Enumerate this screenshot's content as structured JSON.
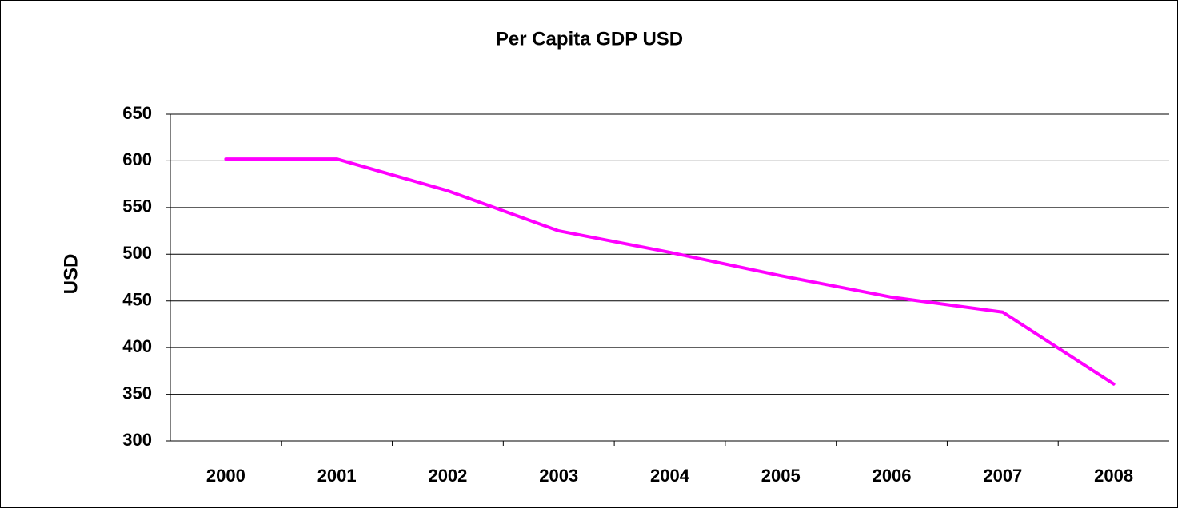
{
  "chart_data": {
    "type": "line",
    "title": "Per Capita GDP USD",
    "y_label": "USD",
    "categories": [
      "2000",
      "2001",
      "2002",
      "2003",
      "2004",
      "2005",
      "2006",
      "2007",
      "2008"
    ],
    "values": [
      602,
      602,
      568,
      525,
      502,
      477,
      454,
      438,
      361
    ],
    "color": "#ff00ff",
    "ylim": [
      300,
      650
    ],
    "yticks": [
      300,
      350,
      400,
      450,
      500,
      550,
      600,
      650
    ],
    "grid": true
  }
}
